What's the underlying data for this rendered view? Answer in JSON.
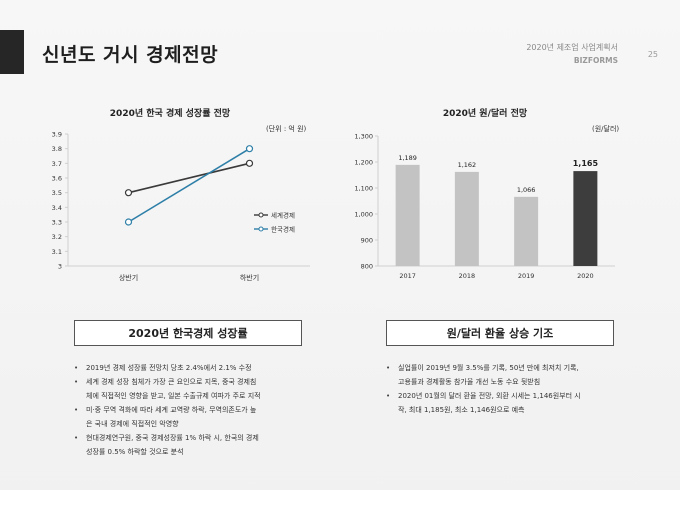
{
  "header": {
    "title": "신년도 거시 경제전망",
    "doc_name": "2020년 제조업 사업계획서",
    "brand": "BIZFORMS",
    "page_number": "25"
  },
  "chart_data": [
    {
      "type": "line",
      "title": "2020년 한국 경제 성장률 전망",
      "unit": "(단위 : 억 원)",
      "categories": [
        "상반기",
        "하반기"
      ],
      "ylim": [
        3,
        3.9
      ],
      "y_ticks": [
        "3",
        "3.1",
        "3.2",
        "3.3",
        "3.4",
        "3.5",
        "3.6",
        "3.7",
        "3.8",
        "3.9"
      ],
      "series": [
        {
          "name": "세계경제",
          "values": [
            3.5,
            3.7
          ],
          "color": "#3a3a3a"
        },
        {
          "name": "한국경제",
          "values": [
            3.3,
            3.8
          ],
          "color": "#2e7fa8"
        }
      ],
      "legend": "right"
    },
    {
      "type": "bar",
      "title": "2020년 원/달러 전망",
      "unit": "(원/달러)",
      "categories": [
        "2017",
        "2018",
        "2019",
        "2020"
      ],
      "values": [
        1189,
        1162,
        1066,
        1165
      ],
      "value_labels": [
        "1,189",
        "1,162",
        "1,066",
        "1,165"
      ],
      "ylim": [
        800,
        1300
      ],
      "y_ticks": [
        "800",
        "900",
        "1,000",
        "1,100",
        "1,200",
        "1,300"
      ],
      "colors": [
        "#c3c3c3",
        "#c3c3c3",
        "#c3c3c3",
        "#3d3d3d"
      ]
    }
  ],
  "left_section": {
    "heading": "2020년 한국경제 성장률",
    "bullets": [
      "2019년 경제 성장률 전망치 당초 2.4%에서 2.1% 수정",
      "세계 경제 성장 침체가 가장 큰 요인으로 지목, 중국 경제침",
      "체에 직접적인 영향을 받고, 일본 수출규제 여파가 주로 지적",
      "미·중 무역 격화에 따라 세계 교역량 하락, 무역의존도가 높",
      "은 국내 경제에 직접적인 악영향",
      "현대경제연구원, 중국 경제성장률 1% 하락 시, 한국의 경제",
      "성장률 0.5% 하락할 것으로 분석"
    ]
  },
  "right_section": {
    "heading": "원/달러 환율 상승 기조",
    "bullets": [
      "실업률이 2019년 9월 3.5%를 기록, 50년 만에 최저치 기록,",
      "고용률과 경제활동 참가율 개선 노동 수요 뒷받침",
      "2020년 01월의 달러 환율 전망, 외환 시세는 1,146원부터 시",
      "작, 최대 1,185원, 최소 1,146원으로 예측"
    ]
  }
}
